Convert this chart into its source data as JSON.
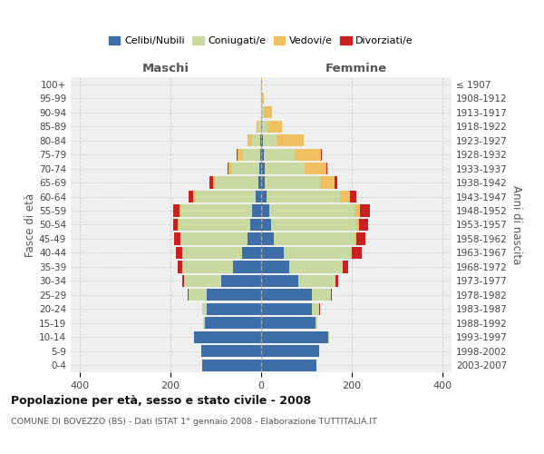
{
  "age_groups": [
    "0-4",
    "5-9",
    "10-14",
    "15-19",
    "20-24",
    "25-29",
    "30-34",
    "35-39",
    "40-44",
    "45-49",
    "50-54",
    "55-59",
    "60-64",
    "65-69",
    "70-74",
    "75-79",
    "80-84",
    "85-89",
    "90-94",
    "95-99",
    "100+"
  ],
  "birth_years": [
    "2003-2007",
    "1998-2002",
    "1993-1997",
    "1988-1992",
    "1983-1987",
    "1978-1982",
    "1973-1977",
    "1968-1972",
    "1963-1967",
    "1958-1962",
    "1953-1957",
    "1948-1952",
    "1943-1947",
    "1938-1942",
    "1933-1937",
    "1928-1932",
    "1923-1927",
    "1918-1922",
    "1913-1917",
    "1908-1912",
    "≤ 1907"
  ],
  "colors": {
    "celibi": "#3d6ea8",
    "coniugati": "#c8daa0",
    "vedovi": "#f0c060",
    "divorziati": "#cc2020"
  },
  "males": {
    "celibi": [
      130,
      132,
      148,
      125,
      120,
      120,
      88,
      62,
      42,
      30,
      25,
      20,
      12,
      7,
      5,
      3,
      2,
      1,
      0,
      0,
      0
    ],
    "coniugati": [
      0,
      0,
      1,
      3,
      10,
      40,
      82,
      112,
      132,
      148,
      158,
      158,
      135,
      95,
      60,
      38,
      18,
      6,
      1,
      0,
      0
    ],
    "vedovi": [
      0,
      0,
      0,
      0,
      0,
      0,
      0,
      0,
      0,
      1,
      1,
      2,
      3,
      5,
      8,
      12,
      10,
      3,
      0,
      0,
      0
    ],
    "divorziati": [
      0,
      0,
      0,
      0,
      0,
      2,
      5,
      10,
      14,
      14,
      10,
      14,
      10,
      8,
      2,
      1,
      0,
      0,
      0,
      0,
      0
    ]
  },
  "females": {
    "celibi": [
      122,
      128,
      148,
      120,
      112,
      112,
      82,
      62,
      50,
      28,
      22,
      18,
      12,
      8,
      8,
      5,
      3,
      2,
      0,
      0,
      0
    ],
    "coniugati": [
      0,
      0,
      1,
      4,
      16,
      42,
      82,
      118,
      148,
      178,
      188,
      188,
      162,
      122,
      88,
      68,
      32,
      12,
      5,
      2,
      0
    ],
    "vedovi": [
      0,
      0,
      0,
      0,
      0,
      0,
      0,
      0,
      1,
      3,
      6,
      12,
      22,
      32,
      48,
      58,
      58,
      32,
      18,
      4,
      1
    ],
    "divorziati": [
      0,
      0,
      0,
      0,
      1,
      2,
      5,
      12,
      22,
      20,
      20,
      22,
      14,
      5,
      2,
      2,
      0,
      0,
      0,
      0,
      0
    ]
  },
  "xlim": 420,
  "xticks": [
    -400,
    -200,
    0,
    200,
    400
  ],
  "title1": "Popolazione per età, sesso e stato civile - 2008",
  "title2": "COMUNE DI BOVEZZO (BS) - Dati ISTAT 1° gennaio 2008 - Elaborazione TUTTITALIA.IT",
  "legend_labels": [
    "Celibi/Nubili",
    "Coniugati/e",
    "Vedovi/e",
    "Divorziati/e"
  ],
  "xlabel_left": "Maschi",
  "xlabel_right": "Femmine",
  "ylabel_left": "Fasce di età",
  "ylabel_right": "Anni di nascita",
  "bg_color": "#efefef",
  "grid_color": "#cccccc",
  "bar_height": 0.85
}
